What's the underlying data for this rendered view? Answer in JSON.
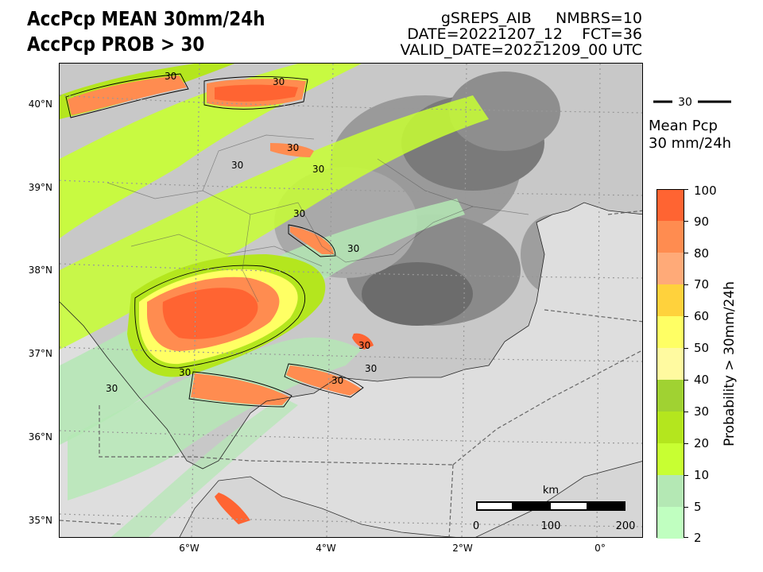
{
  "header": {
    "title_line1": "AccPcp MEAN 30mm/24h",
    "title_line2": "AccPcp PROB > 30",
    "meta_line1": "gSREPS_AIB     NMBRS=10",
    "meta_line2": "DATE=20221207_12    FCT=36",
    "meta_line3": "VALID_DATE=20221209_00 UTC"
  },
  "map": {
    "lat_labels": [
      "40°N",
      "39°N",
      "38°N",
      "37°N",
      "36°N",
      "35°N"
    ],
    "lon_labels": [
      "6°W",
      "4°W",
      "2°W",
      "0°"
    ],
    "contour_label": "30",
    "scale_bar": {
      "unit": "km",
      "ticks": [
        "0",
        "100",
        "200"
      ]
    },
    "land_color": "#dcdcdc",
    "sea_color": "#dcdcdc"
  },
  "legend": {
    "line_label": "30",
    "mean_label_line1": "Mean Pcp",
    "mean_label_line2": "30 mm/24h"
  },
  "colorbar": {
    "title": "Probability > 30mm/24h",
    "tick_labels": [
      "2",
      "5",
      "10",
      "20",
      "30",
      "40",
      "50",
      "60",
      "70",
      "80",
      "90",
      "100"
    ],
    "colors": [
      "#c0ffc0",
      "#b4e8b4",
      "#c8ff32",
      "#b4e61e",
      "#a0d232",
      "#fffaa0",
      "#ffff64",
      "#ffd23c",
      "#ffaa78",
      "#ff8c50",
      "#ff6432"
    ]
  }
}
